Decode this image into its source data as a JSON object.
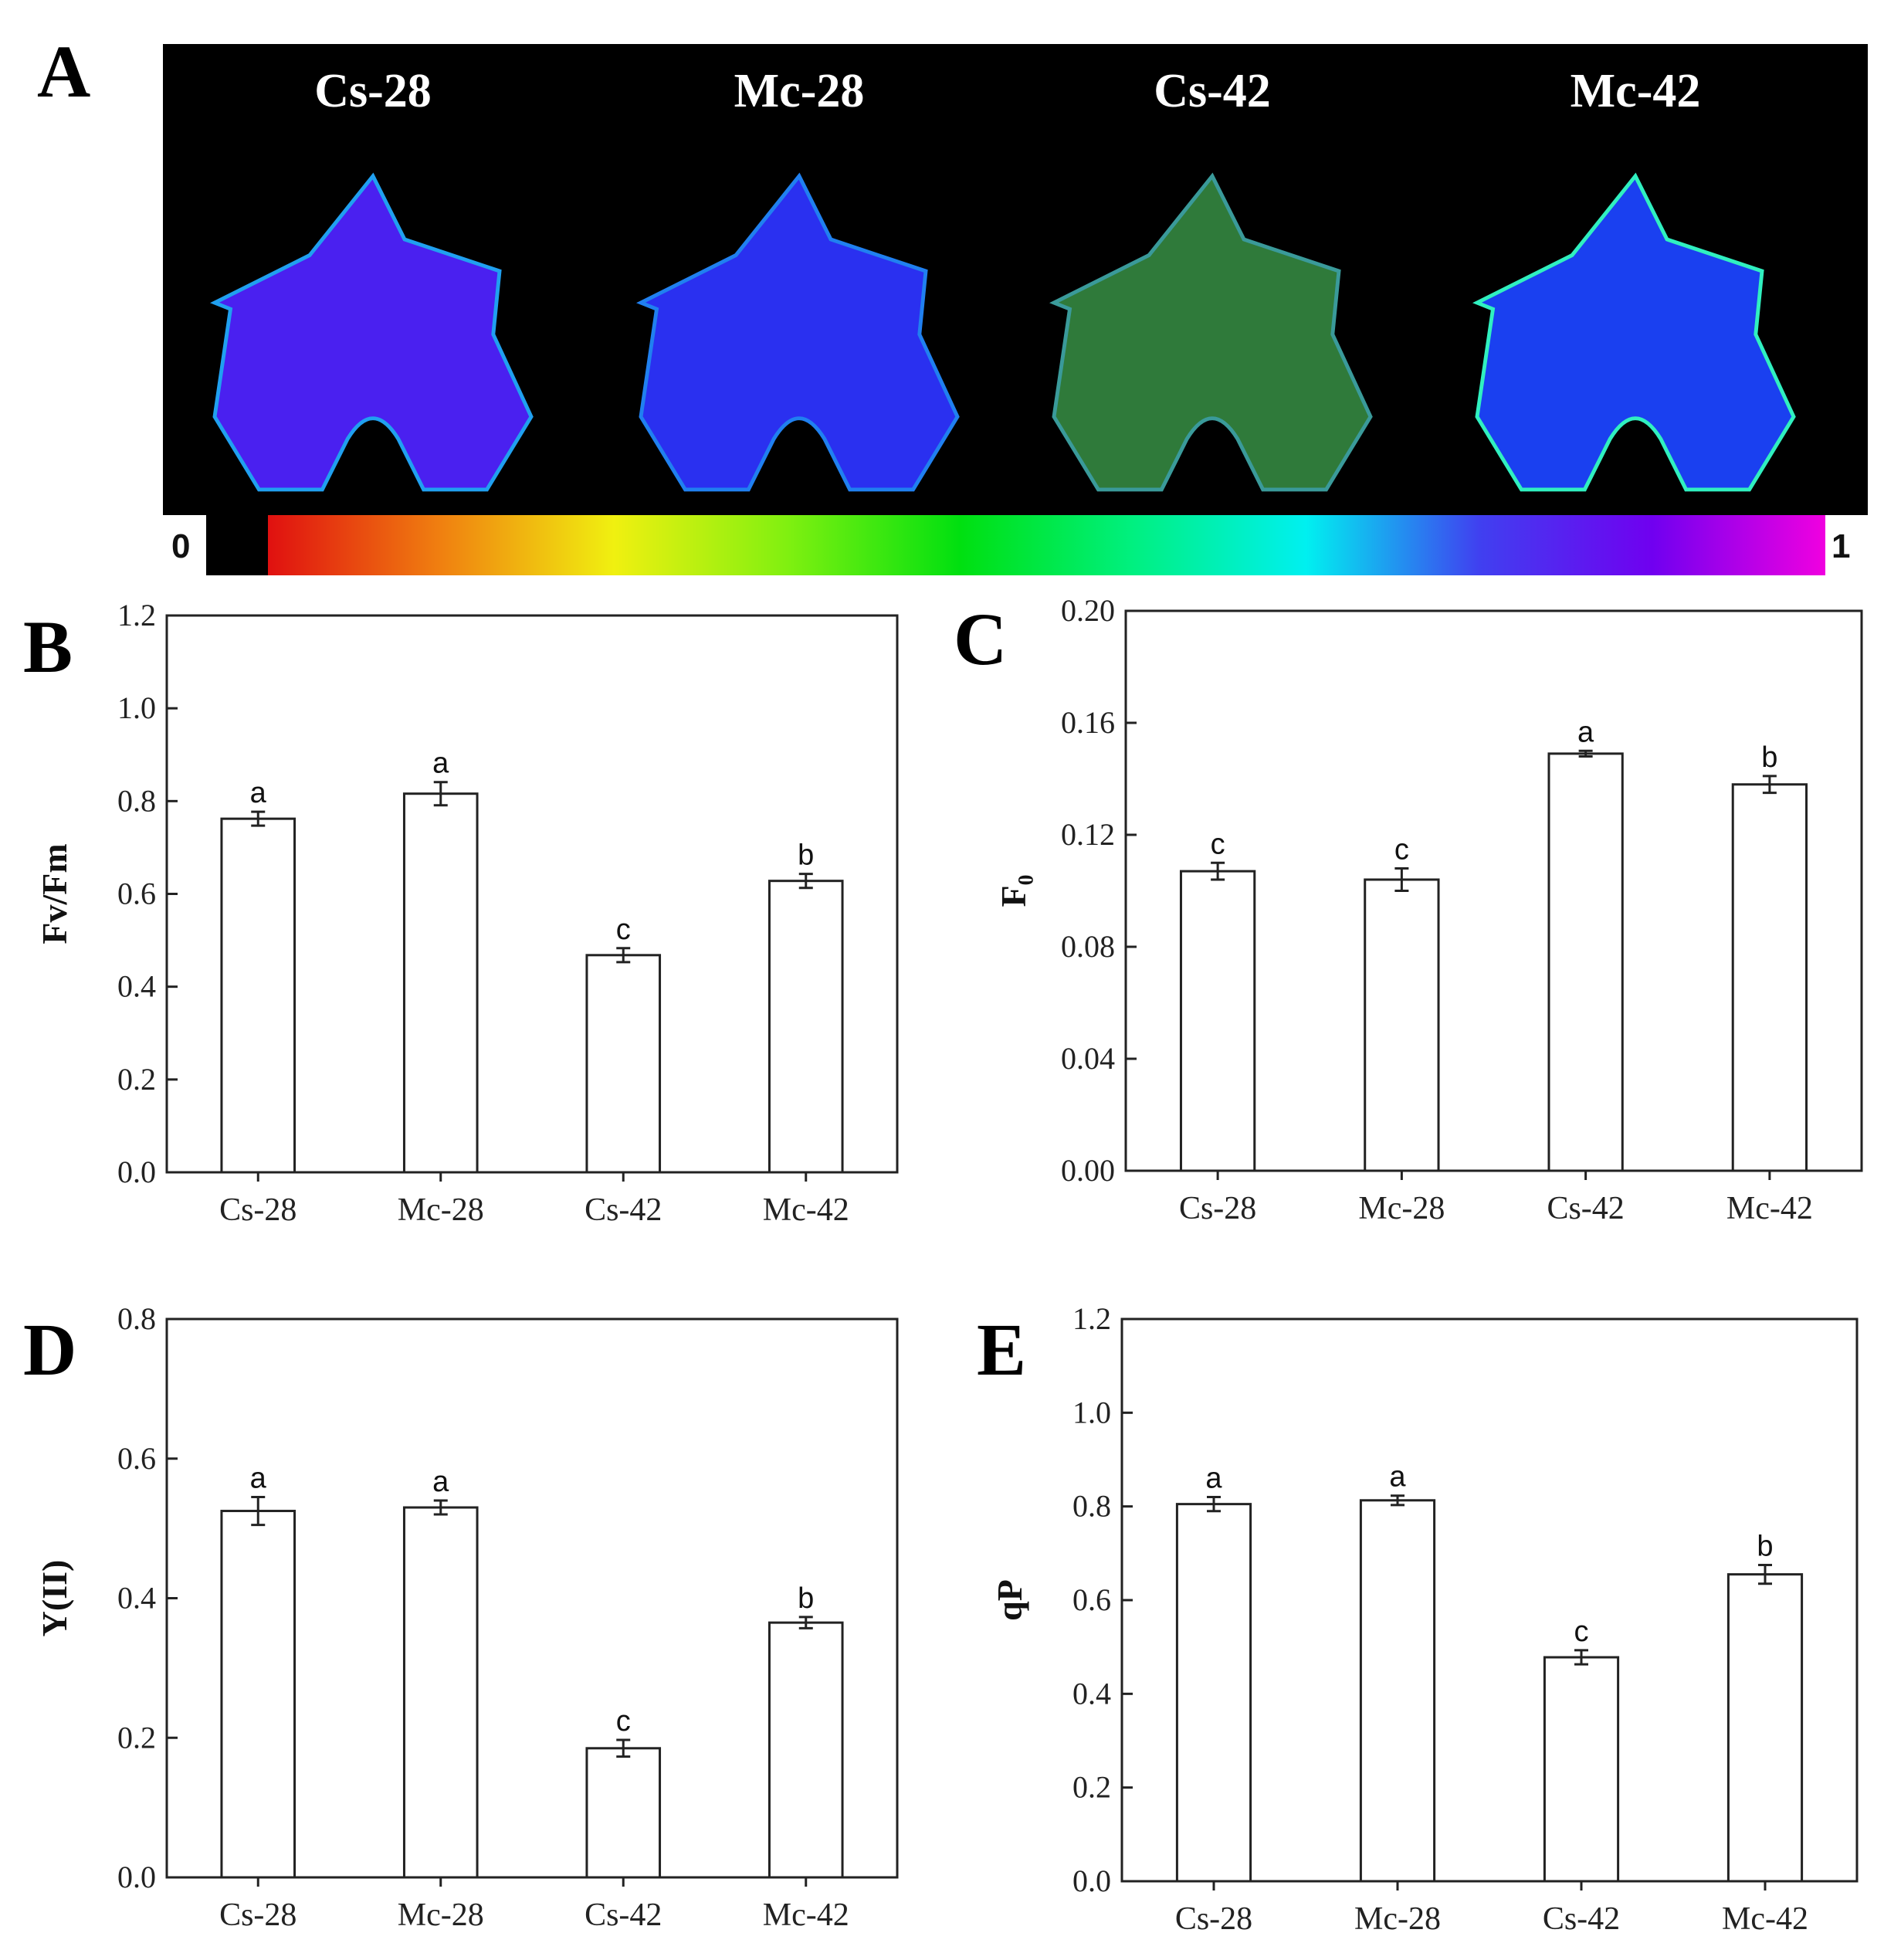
{
  "panel_a": {
    "letter": "A",
    "images": [
      {
        "label": "Cs-28",
        "color_main": "#4a20f0",
        "color_edge": "#20a0f0"
      },
      {
        "label": "Mc-28",
        "color_main": "#2a30f0",
        "color_edge": "#2080f0"
      },
      {
        "label": "Cs-42",
        "color_main": "#2f7a3a",
        "color_edge": "#3a9a9a"
      },
      {
        "label": "Mc-42",
        "color_main": "#1a40f0",
        "color_edge": "#30f0c0"
      }
    ],
    "colorbar": {
      "min_label": "0",
      "max_label": "1",
      "stops": [
        "#e01010",
        "#f08010",
        "#f0f010",
        "#80f010",
        "#00e010",
        "#00f080",
        "#00f0f0",
        "#4040f0",
        "#7000f0",
        "#f000e0"
      ]
    }
  },
  "chart_data": [
    {
      "letter": "B",
      "type": "bar",
      "categories": [
        "Cs-28",
        "Mc-28",
        "Cs-42",
        "Mc-42"
      ],
      "values": [
        0.762,
        0.816,
        0.468,
        0.628
      ],
      "errors": [
        0.015,
        0.025,
        0.015,
        0.015
      ],
      "significance": [
        "a",
        "a",
        "c",
        "b"
      ],
      "ylabel": "Fv/Fm",
      "ylim": [
        0,
        1.2
      ],
      "yticks": [
        "0.0",
        "0.2",
        "0.4",
        "0.6",
        "0.8",
        "1.0",
        "1.2"
      ],
      "grid": false
    },
    {
      "letter": "C",
      "type": "bar",
      "categories": [
        "Cs-28",
        "Mc-28",
        "Cs-42",
        "Mc-42"
      ],
      "values": [
        0.107,
        0.104,
        0.149,
        0.138
      ],
      "errors": [
        0.003,
        0.004,
        0.001,
        0.003
      ],
      "significance": [
        "c",
        "c",
        "a",
        "b"
      ],
      "ylabel": "F₀",
      "ylim": [
        0,
        0.2
      ],
      "yticks": [
        "0.00",
        "0.04",
        "0.08",
        "0.12",
        "0.16",
        "0.20"
      ],
      "grid": false
    },
    {
      "letter": "D",
      "type": "bar",
      "categories": [
        "Cs-28",
        "Mc-28",
        "Cs-42",
        "Mc-42"
      ],
      "values": [
        0.525,
        0.53,
        0.185,
        0.365
      ],
      "errors": [
        0.02,
        0.01,
        0.012,
        0.008
      ],
      "significance": [
        "a",
        "a",
        "c",
        "b"
      ],
      "ylabel": "Y(II)",
      "ylim": [
        0,
        0.8
      ],
      "yticks": [
        "0.0",
        "0.2",
        "0.4",
        "0.6",
        "0.8"
      ],
      "grid": false
    },
    {
      "letter": "E",
      "type": "bar",
      "categories": [
        "Cs-28",
        "Mc-28",
        "Cs-42",
        "Mc-42"
      ],
      "values": [
        0.805,
        0.813,
        0.478,
        0.655
      ],
      "errors": [
        0.015,
        0.01,
        0.015,
        0.02
      ],
      "significance": [
        "a",
        "a",
        "c",
        "b"
      ],
      "ylabel": "qP",
      "ylim": [
        0,
        1.2
      ],
      "yticks": [
        "0.0",
        "0.2",
        "0.4",
        "0.6",
        "0.8",
        "1.0",
        "1.2"
      ],
      "grid": false
    }
  ]
}
